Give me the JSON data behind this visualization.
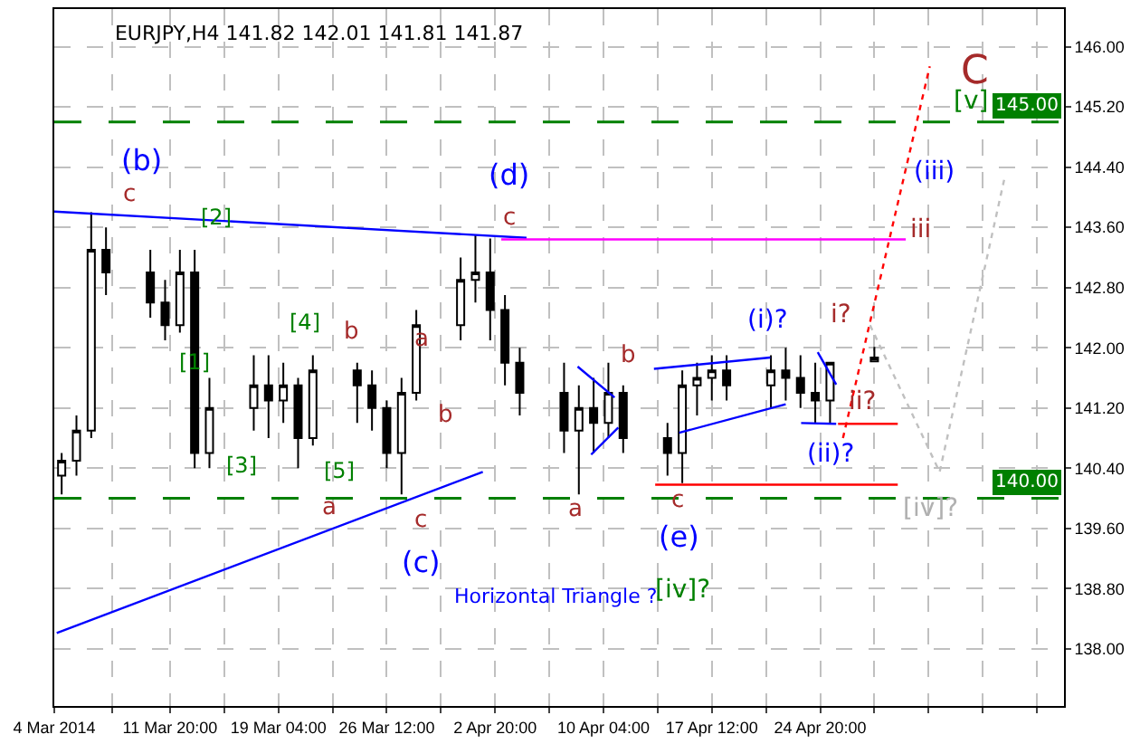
{
  "chart_data": {
    "type": "candlestick",
    "title": "EURJPY,H4 141.82 142.01 141.81 141.87",
    "x": [
      "2014-03-04T12:00",
      "2014-03-05T12:00",
      "2014-03-06T12:00",
      "2014-03-07T12:00",
      "2014-03-10T12:00",
      "2014-03-11T12:00",
      "2014-03-12T12:00",
      "2014-03-13T12:00",
      "2014-03-14T12:00",
      "2014-03-17T12:00",
      "2014-03-18T12:00",
      "2014-03-19T12:00",
      "2014-03-20T12:00",
      "2014-03-21T12:00",
      "2014-03-24T12:00",
      "2014-03-25T12:00",
      "2014-03-26T12:00",
      "2014-03-27T12:00",
      "2014-03-28T12:00",
      "2014-03-31T12:00",
      "2014-04-01T12:00",
      "2014-04-02T12:00",
      "2014-04-03T12:00",
      "2014-04-04T12:00",
      "2014-04-07T12:00",
      "2014-04-08T12:00",
      "2014-04-09T12:00",
      "2014-04-10T12:00",
      "2014-04-11T12:00",
      "2014-04-14T12:00",
      "2014-04-15T12:00",
      "2014-04-16T12:00",
      "2014-04-17T12:00",
      "2014-04-18T12:00",
      "2014-04-21T12:00",
      "2014-04-22T12:00",
      "2014-04-23T12:00",
      "2014-04-24T12:00",
      "2014-04-25T12:00",
      "2014-04-28T12:00"
    ],
    "ohlc": [
      [
        140.3,
        140.6,
        140.05,
        140.5
      ],
      [
        140.5,
        141.1,
        140.3,
        140.9
      ],
      [
        140.9,
        143.8,
        140.8,
        143.3
      ],
      [
        143.3,
        143.6,
        142.7,
        143.0
      ],
      [
        143.0,
        143.3,
        142.4,
        142.6
      ],
      [
        142.6,
        142.9,
        142.1,
        142.3
      ],
      [
        142.3,
        143.3,
        142.2,
        143.0
      ],
      [
        143.0,
        143.3,
        140.4,
        140.6
      ],
      [
        140.6,
        141.6,
        140.4,
        141.2
      ],
      [
        141.2,
        141.9,
        140.9,
        141.5
      ],
      [
        141.5,
        141.9,
        140.8,
        141.3
      ],
      [
        141.3,
        141.8,
        141.0,
        141.5
      ],
      [
        141.5,
        141.6,
        140.4,
        140.8
      ],
      [
        140.8,
        141.9,
        140.7,
        141.7
      ],
      [
        141.7,
        141.8,
        141.0,
        141.5
      ],
      [
        141.5,
        141.7,
        140.9,
        141.2
      ],
      [
        141.2,
        141.3,
        140.4,
        140.6
      ],
      [
        140.6,
        141.6,
        140.05,
        141.4
      ],
      [
        141.4,
        142.5,
        141.3,
        142.3
      ],
      [
        142.3,
        143.2,
        142.1,
        142.9
      ],
      [
        142.9,
        143.5,
        142.6,
        143.0
      ],
      [
        143.0,
        143.45,
        142.1,
        142.5
      ],
      [
        142.5,
        142.7,
        141.5,
        141.8
      ],
      [
        141.8,
        142.0,
        141.1,
        141.4
      ],
      [
        141.4,
        141.8,
        140.6,
        140.9
      ],
      [
        140.9,
        141.5,
        140.05,
        141.2
      ],
      [
        141.2,
        141.6,
        140.6,
        141.0
      ],
      [
        141.0,
        141.8,
        140.8,
        141.4
      ],
      [
        141.4,
        141.5,
        140.6,
        140.8
      ],
      [
        140.8,
        141.0,
        140.3,
        140.6
      ],
      [
        140.6,
        141.7,
        140.2,
        141.5
      ],
      [
        141.5,
        141.8,
        141.1,
        141.6
      ],
      [
        141.6,
        141.9,
        141.3,
        141.7
      ],
      [
        141.7,
        141.9,
        141.3,
        141.5
      ],
      [
        141.5,
        141.9,
        141.2,
        141.7
      ],
      [
        141.7,
        142.0,
        141.3,
        141.6
      ],
      [
        141.6,
        141.9,
        141.2,
        141.4
      ],
      [
        141.4,
        141.8,
        141.0,
        141.3
      ],
      [
        141.3,
        141.8,
        141.0,
        141.8
      ],
      [
        141.82,
        142.01,
        141.81,
        141.87
      ]
    ],
    "color": "#000000",
    "series": [
      {
        "type": "line",
        "color": "#0000ff",
        "line_style": "solid",
        "x": [
          "2014-03-04T00:00",
          "2014-04-04T23:00"
        ],
        "values": [
          143.81,
          143.46
        ]
      },
      {
        "type": "line",
        "color": "#ff00ff",
        "line_style": "solid",
        "x": [
          "2014-04-03T06:00",
          "2014-04-30T15:00"
        ],
        "values": [
          143.44,
          143.44
        ]
      },
      {
        "type": "line",
        "color": "#0000ff",
        "line_style": "solid",
        "x": [
          "2014-03-04T04:00",
          "2014-04-02T00:00"
        ],
        "values": [
          138.21,
          140.35
        ]
      },
      {
        "type": "line",
        "color": "#0000ff",
        "line_style": "solid",
        "x": [
          "2014-04-08T10:00",
          "2014-04-10T22:00"
        ],
        "values": [
          141.75,
          141.34
        ]
      },
      {
        "type": "line",
        "color": "#0000ff",
        "line_style": "solid",
        "x": [
          "2014-04-09T08:00",
          "2014-04-11T04:00"
        ],
        "values": [
          140.58,
          140.94
        ]
      },
      {
        "type": "line",
        "color": "#0000ff",
        "line_style": "solid",
        "x": [
          "2014-04-13T14:00",
          "2014-04-21T11:00"
        ],
        "values": [
          141.72,
          141.87
        ]
      },
      {
        "type": "line",
        "color": "#0000ff",
        "line_style": "solid",
        "x": [
          "2014-04-15T07:00",
          "2014-04-22T12:00"
        ],
        "values": [
          140.87,
          141.25
        ]
      },
      {
        "type": "line",
        "color": "#0000ff",
        "line_style": "solid",
        "x": [
          "2014-04-23T13:00",
          "2014-04-25T22:00"
        ],
        "values": [
          141.0,
          140.99
        ]
      },
      {
        "type": "line",
        "color": "#0000ff",
        "line_style": "solid",
        "x": [
          "2014-04-24T16:00",
          "2014-04-25T22:00"
        ],
        "values": [
          141.94,
          141.51
        ]
      },
      {
        "type": "line",
        "color": "#ff0000",
        "line_style": "solid",
        "x": [
          "2014-04-26T01:00",
          "2014-04-30T02:00"
        ],
        "values": [
          140.99,
          140.99
        ]
      },
      {
        "type": "line",
        "color": "#ff0000",
        "line_style": "solid",
        "x": [
          "2014-04-13T16:00",
          "2014-04-30T02:00"
        ],
        "values": [
          140.18,
          140.18
        ]
      },
      {
        "type": "line",
        "color": "#ff0000",
        "line_style": "dotted",
        "x": [
          "2014-04-26T09:00",
          "2014-05-02T06:00"
        ],
        "values": [
          140.8,
          145.74
        ]
      },
      {
        "type": "line",
        "color": "#c0c0c0",
        "line_style": "dotted",
        "x": [
          "2014-04-28T05:00",
          "2014-05-02T22:00",
          "2014-05-07T07:00"
        ],
        "values": [
          142.3,
          140.35,
          144.24
        ]
      }
    ],
    "xlim": [
      "2014-03-04T00:00",
      "2014-05-11T08:00"
    ],
    "xticks": [
      {
        "value": "2014-03-04T00:00",
        "label": "4 Mar 2014"
      },
      {
        "value": "2014-03-07T22:00",
        "label": null
      },
      {
        "value": "2014-03-11T20:00",
        "label": "11 Mar 20:00"
      },
      {
        "value": "2014-03-15T12:00",
        "label": null
      },
      {
        "value": "2014-03-19T04:00",
        "label": "19 Mar 04:00"
      },
      {
        "value": "2014-03-22T20:00",
        "label": null
      },
      {
        "value": "2014-03-26T12:00",
        "label": "26 Mar 12:00"
      },
      {
        "value": "2014-03-30T04:00",
        "label": null
      },
      {
        "value": "2014-04-02T20:00",
        "label": "2 Apr 20:00"
      },
      {
        "value": "2014-04-06T12:00",
        "label": null
      },
      {
        "value": "2014-04-10T04:00",
        "label": "10 Apr 04:00"
      },
      {
        "value": "2014-04-13T20:00",
        "label": null
      },
      {
        "value": "2014-04-17T12:00",
        "label": "17 Apr 12:00"
      },
      {
        "value": "2014-04-21T04:00",
        "label": null
      },
      {
        "value": "2014-04-24T20:00",
        "label": "24 Apr 20:00"
      },
      {
        "value": "2014-04-28T12:00",
        "label": null
      },
      {
        "value": "2014-05-02T04:00",
        "label": null
      },
      {
        "value": "2014-05-05T20:00",
        "label": null
      },
      {
        "value": "2014-05-09T12:00",
        "label": null
      }
    ],
    "ylim": [
      137.24,
      146.5
    ],
    "yticks": [
      {
        "value": 138,
        "label": "138.00"
      },
      {
        "value": 138.8,
        "label": "138.80"
      },
      {
        "value": 139.6,
        "label": "139.60"
      },
      {
        "value": 140.4,
        "label": "140.40"
      },
      {
        "value": 141.2,
        "label": "141.20"
      },
      {
        "value": 142,
        "label": "142.00"
      },
      {
        "value": 142.8,
        "label": "142.80"
      },
      {
        "value": 143.6,
        "label": "143.60"
      },
      {
        "value": 144.4,
        "label": "144.40"
      },
      {
        "value": 145.2,
        "label": "145.20"
      },
      {
        "value": 146,
        "label": "146.00"
      }
    ],
    "grid": true,
    "ref_lines": [
      {
        "axis": "y",
        "value": 145.0,
        "label": "145.00",
        "color": "#008000",
        "line_style": "dashed"
      },
      {
        "axis": "y",
        "value": 140.0,
        "label": "140.00",
        "color": "#008000",
        "line_style": "dashed"
      }
    ],
    "annotations": [
      "(b)",
      "c",
      "[2]",
      "[1]",
      "[4]",
      "b",
      "a",
      "(d)",
      "c",
      "b",
      "[3]",
      "[5]",
      "a",
      "c",
      "(c)",
      "Horizontal Triangle ?",
      "a",
      "b",
      "c",
      "(e)",
      "[iv]?",
      "(i)?",
      "i?",
      "ii?",
      "(ii)?",
      "iii",
      "(iii)",
      "C",
      "[v]",
      "[iv]?"
    ]
  }
}
